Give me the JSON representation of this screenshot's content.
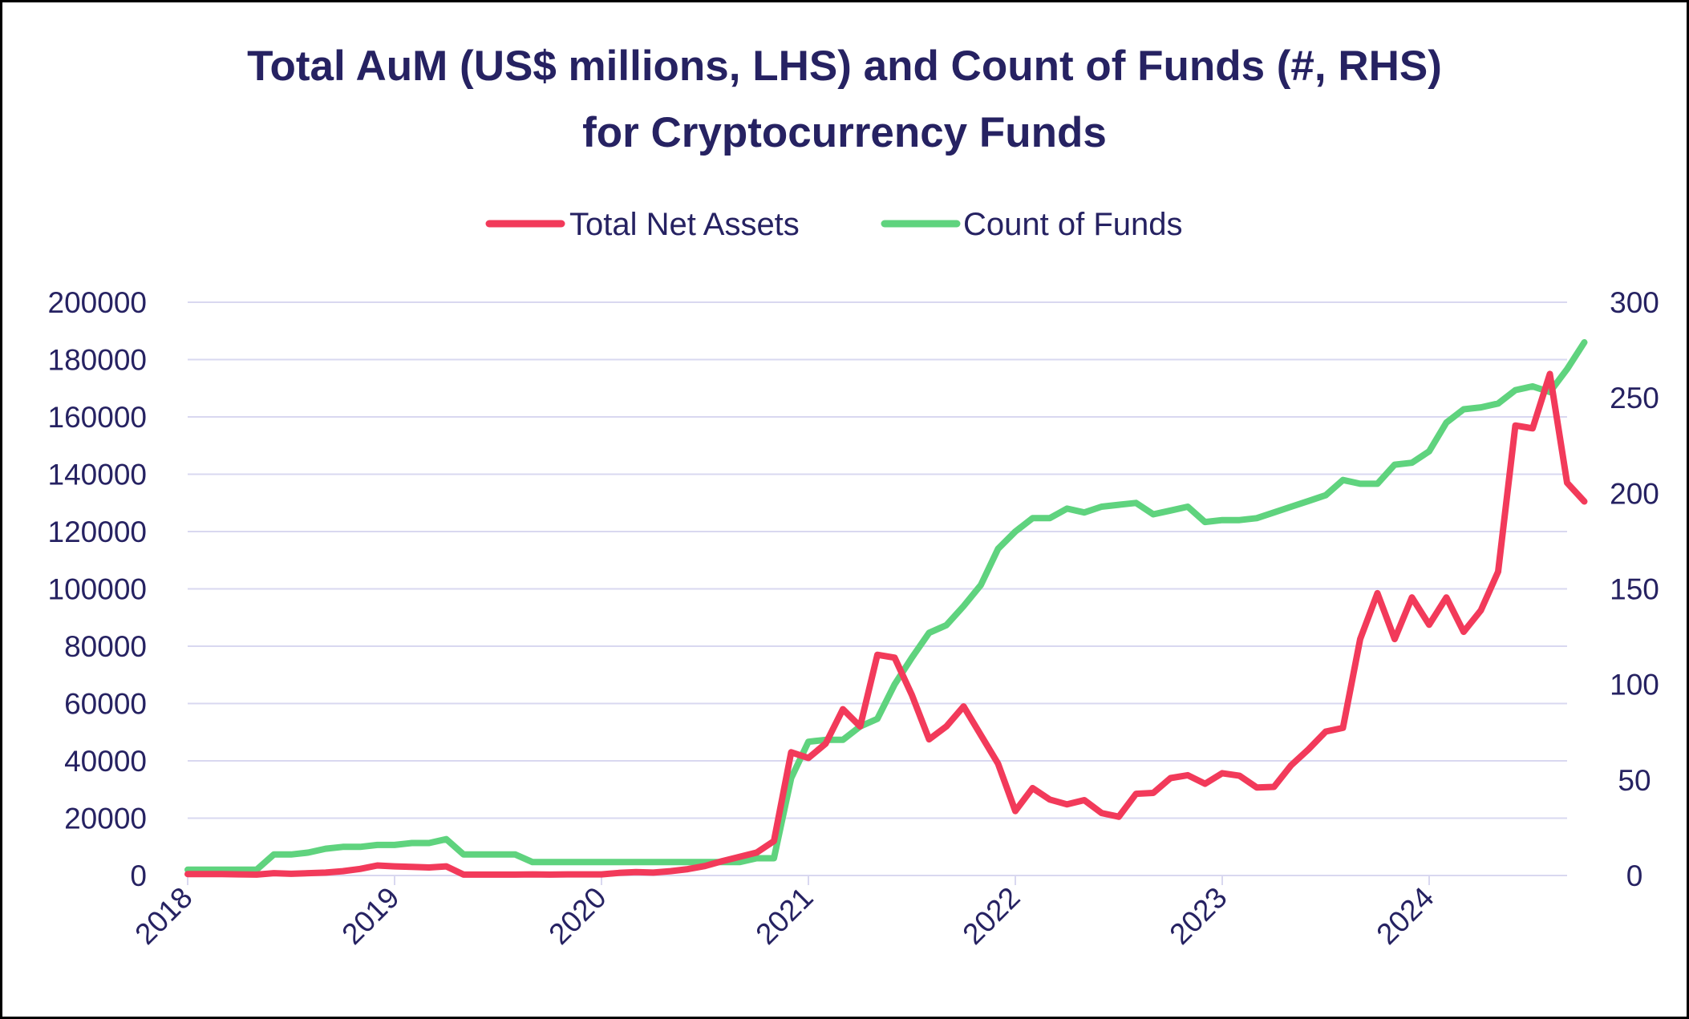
{
  "chart_data": {
    "type": "line",
    "title_line1": "Total AuM (US$ millions, LHS) and Count of Funds (#, RHS)",
    "title_line2": "for Cryptocurrency Funds",
    "xlabel": "",
    "ylabel_left": "",
    "ylabel_right": "",
    "x_tick_labels": [
      "2018",
      "2019",
      "2020",
      "2021",
      "2022",
      "2023",
      "2024"
    ],
    "y_left_ticks": [
      "0",
      "20000",
      "40000",
      "60000",
      "80000",
      "100000",
      "120000",
      "140000",
      "160000",
      "180000",
      "200000"
    ],
    "y_right_ticks": [
      "0",
      "50",
      "100",
      "150",
      "200",
      "250",
      "300"
    ],
    "ylim_left": [
      0,
      200000
    ],
    "ylim_right": [
      0,
      300
    ],
    "xlim": [
      "2018-01",
      "2024-09"
    ],
    "grid": "horizontal",
    "legend": "top-center",
    "series": [
      {
        "name": "Total Net Assets",
        "axis": "left",
        "color": "#F23A5A",
        "points": [
          [
            "2018-01",
            500
          ],
          [
            "2018-02",
            500
          ],
          [
            "2018-03",
            500
          ],
          [
            "2018-04",
            400
          ],
          [
            "2018-05",
            300
          ],
          [
            "2018-06",
            800
          ],
          [
            "2018-07",
            600
          ],
          [
            "2018-08",
            800
          ],
          [
            "2018-09",
            1000
          ],
          [
            "2018-10",
            1500
          ],
          [
            "2018-11",
            2300
          ],
          [
            "2018-12",
            3500
          ],
          [
            "2019-01",
            3200
          ],
          [
            "2019-02",
            3000
          ],
          [
            "2019-03",
            2800
          ],
          [
            "2019-04",
            3200
          ],
          [
            "2019-05",
            300
          ],
          [
            "2019-06",
            300
          ],
          [
            "2019-07",
            300
          ],
          [
            "2019-08",
            300
          ],
          [
            "2019-09",
            400
          ],
          [
            "2019-10",
            300
          ],
          [
            "2019-11",
            400
          ],
          [
            "2019-12",
            400
          ],
          [
            "2020-01",
            400
          ],
          [
            "2020-02",
            900
          ],
          [
            "2020-03",
            1200
          ],
          [
            "2020-04",
            1000
          ],
          [
            "2020-05",
            1500
          ],
          [
            "2020-06",
            2200
          ],
          [
            "2020-07",
            3300
          ],
          [
            "2020-08",
            5000
          ],
          [
            "2020-09",
            6500
          ],
          [
            "2020-10",
            8000
          ],
          [
            "2020-11",
            12000
          ],
          [
            "2020-12",
            43000
          ],
          [
            "2021-01",
            41000
          ],
          [
            "2021-02",
            46000
          ],
          [
            "2021-03",
            58000
          ],
          [
            "2021-04",
            52000
          ],
          [
            "2021-05",
            77000
          ],
          [
            "2021-06",
            76000
          ],
          [
            "2021-07",
            63000
          ],
          [
            "2021-08",
            47500
          ],
          [
            "2021-09",
            52000
          ],
          [
            "2021-10",
            59000
          ],
          [
            "2021-11",
            49000
          ],
          [
            "2021-12",
            39000
          ],
          [
            "2022-01",
            22500
          ],
          [
            "2022-02",
            30500
          ],
          [
            "2022-03",
            26500
          ],
          [
            "2022-04",
            24800
          ],
          [
            "2022-05",
            26300
          ],
          [
            "2022-06",
            21800
          ],
          [
            "2022-07",
            20500
          ],
          [
            "2022-08",
            28500
          ],
          [
            "2022-09",
            28800
          ],
          [
            "2022-10",
            34000
          ],
          [
            "2022-11",
            35000
          ],
          [
            "2022-12",
            32000
          ],
          [
            "2023-01",
            35700
          ],
          [
            "2023-02",
            34800
          ],
          [
            "2023-03",
            30700
          ],
          [
            "2023-04",
            30900
          ],
          [
            "2023-05",
            38500
          ],
          [
            "2023-06",
            44000
          ],
          [
            "2023-07",
            50200
          ],
          [
            "2023-08",
            51500
          ],
          [
            "2023-09",
            82500
          ],
          [
            "2023-10",
            98500
          ],
          [
            "2023-11",
            82500
          ],
          [
            "2023-12",
            97000
          ],
          [
            "2024-01",
            87500
          ],
          [
            "2024-02",
            97000
          ],
          [
            "2024-03",
            85000
          ],
          [
            "2024-04",
            92500
          ],
          [
            "2024-05",
            106000
          ],
          [
            "2024-06",
            157000
          ],
          [
            "2024-07",
            156000
          ],
          [
            "2024-08",
            175000
          ],
          [
            "2024-09",
            137000
          ],
          [
            "2024-10",
            130500
          ]
        ]
      },
      {
        "name": "Count of Funds",
        "axis": "right",
        "color": "#5FD37E",
        "points": [
          [
            "2018-01",
            3
          ],
          [
            "2018-02",
            3
          ],
          [
            "2018-03",
            3
          ],
          [
            "2018-04",
            3
          ],
          [
            "2018-05",
            3
          ],
          [
            "2018-06",
            11
          ],
          [
            "2018-07",
            11
          ],
          [
            "2018-08",
            12
          ],
          [
            "2018-09",
            14
          ],
          [
            "2018-10",
            15
          ],
          [
            "2018-11",
            15
          ],
          [
            "2018-12",
            16
          ],
          [
            "2019-01",
            16
          ],
          [
            "2019-02",
            17
          ],
          [
            "2019-03",
            17
          ],
          [
            "2019-04",
            19
          ],
          [
            "2019-05",
            11
          ],
          [
            "2019-06",
            11
          ],
          [
            "2019-07",
            11
          ],
          [
            "2019-08",
            11
          ],
          [
            "2019-09",
            7
          ],
          [
            "2019-10",
            7
          ],
          [
            "2019-11",
            7
          ],
          [
            "2019-12",
            7
          ],
          [
            "2020-01",
            7
          ],
          [
            "2020-02",
            7
          ],
          [
            "2020-03",
            7
          ],
          [
            "2020-04",
            7
          ],
          [
            "2020-05",
            7
          ],
          [
            "2020-06",
            7
          ],
          [
            "2020-07",
            7
          ],
          [
            "2020-08",
            7
          ],
          [
            "2020-09",
            7
          ],
          [
            "2020-10",
            9
          ],
          [
            "2020-11",
            9
          ],
          [
            "2020-12",
            51
          ],
          [
            "2021-01",
            70
          ],
          [
            "2021-02",
            71
          ],
          [
            "2021-03",
            71
          ],
          [
            "2021-04",
            78
          ],
          [
            "2021-05",
            82
          ],
          [
            "2021-06",
            100
          ],
          [
            "2021-07",
            114
          ],
          [
            "2021-08",
            127
          ],
          [
            "2021-09",
            131
          ],
          [
            "2021-10",
            141
          ],
          [
            "2021-11",
            152
          ],
          [
            "2021-12",
            171
          ],
          [
            "2022-01",
            180
          ],
          [
            "2022-02",
            187
          ],
          [
            "2022-03",
            187
          ],
          [
            "2022-04",
            192
          ],
          [
            "2022-05",
            190
          ],
          [
            "2022-06",
            193
          ],
          [
            "2022-07",
            194
          ],
          [
            "2022-08",
            195
          ],
          [
            "2022-09",
            189
          ],
          [
            "2022-10",
            191
          ],
          [
            "2022-11",
            193
          ],
          [
            "2022-12",
            185
          ],
          [
            "2023-01",
            186
          ],
          [
            "2023-02",
            186
          ],
          [
            "2023-03",
            187
          ],
          [
            "2023-04",
            190
          ],
          [
            "2023-05",
            193
          ],
          [
            "2023-06",
            196
          ],
          [
            "2023-07",
            199
          ],
          [
            "2023-08",
            207
          ],
          [
            "2023-09",
            205
          ],
          [
            "2023-10",
            205
          ],
          [
            "2023-11",
            215
          ],
          [
            "2023-12",
            216
          ],
          [
            "2024-01",
            222
          ],
          [
            "2024-02",
            237
          ],
          [
            "2024-03",
            244
          ],
          [
            "2024-04",
            245
          ],
          [
            "2024-05",
            247
          ],
          [
            "2024-06",
            254
          ],
          [
            "2024-07",
            256
          ],
          [
            "2024-08",
            253
          ],
          [
            "2024-09",
            265
          ],
          [
            "2024-10",
            279
          ]
        ]
      }
    ]
  }
}
